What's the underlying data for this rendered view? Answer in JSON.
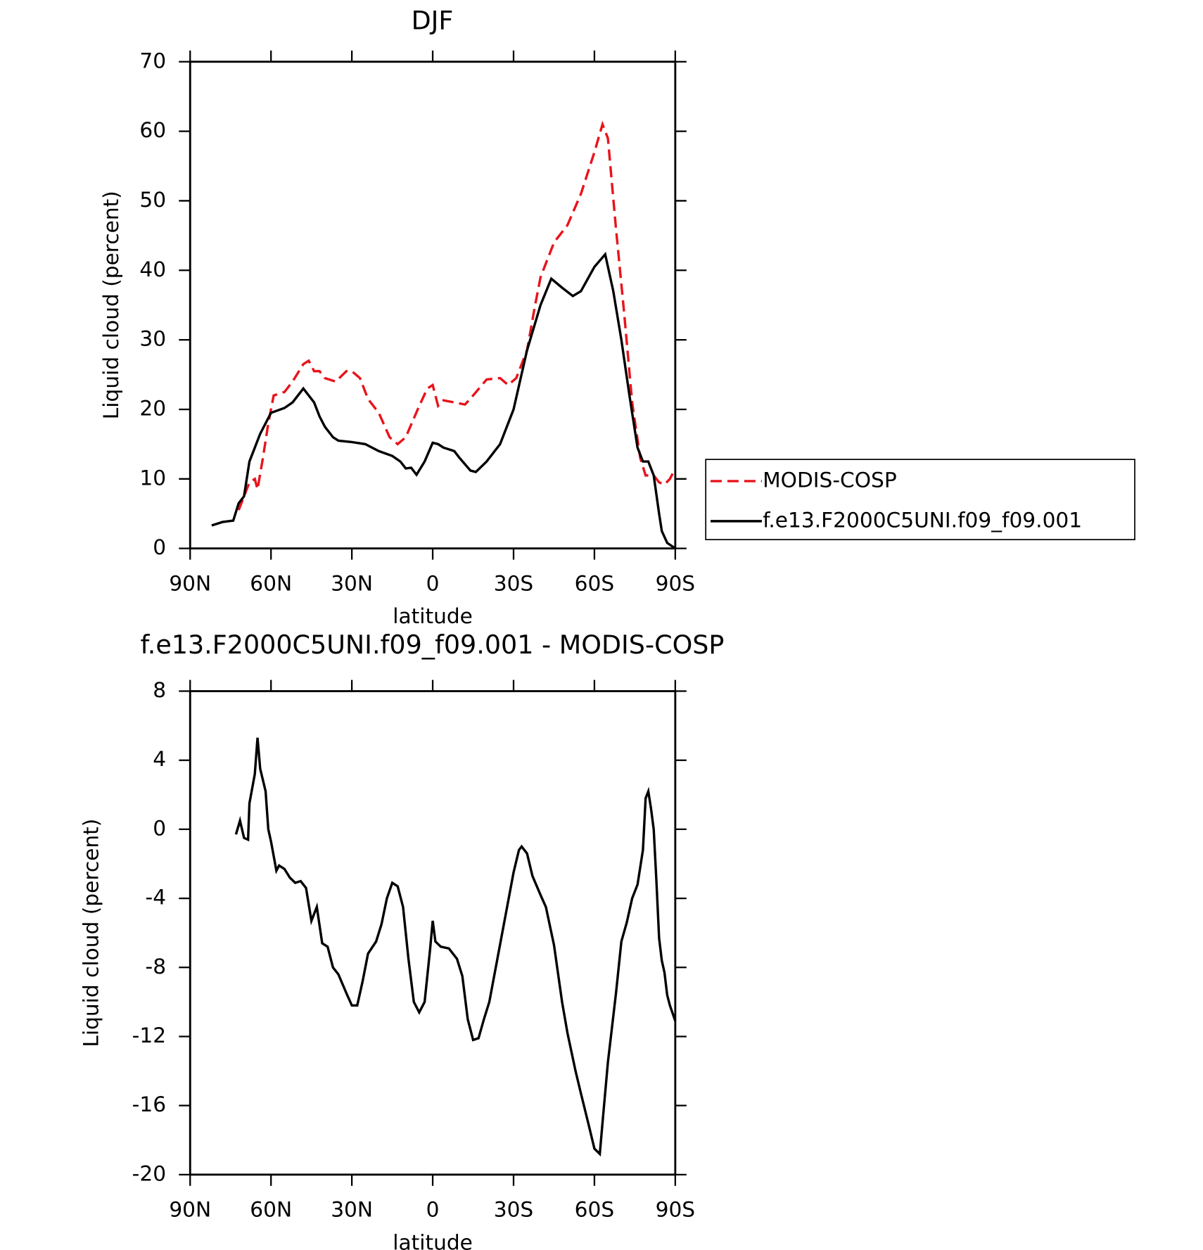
{
  "chart_data": [
    {
      "type": "line",
      "title": "DJF",
      "x_label": "latitude",
      "y_label": "Liquid cloud (percent)",
      "xlim": [
        90,
        -90
      ],
      "xticks": [
        {
          "value": 90,
          "label": "90N"
        },
        {
          "value": 60,
          "label": "60N"
        },
        {
          "value": 30,
          "label": "30N"
        },
        0,
        {
          "value": -30,
          "label": "30S"
        },
        {
          "value": -60,
          "label": "60S"
        },
        {
          "value": -90,
          "label": "90S"
        }
      ],
      "ylim": [
        0,
        70
      ],
      "yticks": [
        0,
        10,
        20,
        30,
        40,
        50,
        60,
        70
      ],
      "legend": "right",
      "series": [
        {
          "name": "MODIS-COSP",
          "color": "#e8141c",
          "line_style": "dashed",
          "x": [
            72,
            70,
            68,
            66,
            65,
            63,
            61,
            59,
            55,
            52,
            48,
            46,
            44,
            42,
            40,
            36,
            32,
            30,
            27,
            24,
            20,
            16,
            13,
            10,
            5,
            2,
            0,
            -2,
            -4,
            -8,
            -12,
            -15,
            -20,
            -25,
            -28,
            -31,
            -35,
            -38,
            -40,
            -45,
            -50,
            -55,
            -60,
            -63,
            -65,
            -68,
            -71,
            -74,
            -77,
            -79,
            -82,
            -84,
            -86,
            -88,
            -90
          ],
          "values": [
            5.5,
            7.5,
            9.5,
            10,
            8.5,
            13,
            18,
            22,
            22.5,
            24,
            26.5,
            27,
            25.5,
            25.5,
            24.5,
            24,
            25.5,
            25.5,
            24.5,
            21.5,
            19.5,
            16,
            15,
            16,
            20.5,
            23,
            23.5,
            20.5,
            21.3,
            21,
            20.7,
            22,
            24.3,
            24.5,
            23.5,
            24.5,
            28.5,
            35,
            39,
            44,
            46.5,
            51,
            57,
            61,
            59,
            46,
            34,
            21,
            13,
            10.5,
            10.5,
            9.5,
            9.2,
            10,
            11.5
          ]
        },
        {
          "name": "f.e13.F2000C5UNI.f09_f09.001",
          "color": "#000000",
          "line_style": "solid",
          "x": [
            82,
            78,
            74,
            72,
            70,
            68,
            66,
            64,
            60,
            55,
            52,
            48,
            46,
            44,
            42,
            40,
            37,
            35,
            30,
            25,
            20,
            15,
            12,
            10,
            8,
            6,
            3,
            0,
            -2,
            -4,
            -8,
            -10,
            -14,
            -16,
            -20,
            -25,
            -30,
            -35,
            -40,
            -44,
            -48,
            -52,
            -55,
            -60,
            -64,
            -67,
            -70,
            -73,
            -76,
            -78,
            -80,
            -82,
            -84,
            -85,
            -87,
            -90
          ],
          "values": [
            3.3,
            3.8,
            4,
            6.5,
            7.5,
            12.5,
            14.5,
            16.5,
            19.5,
            20.2,
            21,
            23,
            22,
            21,
            19,
            17.5,
            16,
            15.5,
            15.3,
            15,
            14,
            13.3,
            12.5,
            11.5,
            11.6,
            10.6,
            12.5,
            15.2,
            15,
            14.5,
            14,
            13,
            11.2,
            11,
            12.5,
            15,
            20,
            28.5,
            35,
            38.8,
            37.5,
            36.3,
            37,
            40.5,
            42.3,
            37,
            30,
            22,
            14.5,
            12.5,
            12.5,
            10.5,
            5,
            2.5,
            0.8,
            0
          ]
        }
      ]
    },
    {
      "type": "line",
      "title": "f.e13.F2000C5UNI.f09_f09.001 - MODIS-COSP",
      "x_label": "latitude",
      "y_label": "Liquid cloud (percent)",
      "xlim": [
        90,
        -90
      ],
      "xticks": [
        {
          "value": 90,
          "label": "90N"
        },
        {
          "value": 60,
          "label": "60N"
        },
        {
          "value": 30,
          "label": "30N"
        },
        0,
        {
          "value": -30,
          "label": "30S"
        },
        {
          "value": -60,
          "label": "60S"
        },
        {
          "value": -90,
          "label": "90S"
        }
      ],
      "ylim": [
        -20,
        8
      ],
      "yticks": [
        -20,
        -16,
        -12,
        -8,
        -4,
        0,
        4,
        8
      ],
      "series": [
        {
          "color": "#000000",
          "line_style": "solid",
          "x": [
            73,
            71.5,
            70,
            68.5,
            68,
            66,
            65,
            64,
            62,
            61,
            60,
            58,
            57,
            55,
            53,
            51,
            49,
            47,
            45,
            43,
            41,
            39,
            37,
            35,
            32,
            30,
            28,
            26,
            24,
            21,
            19,
            17,
            15,
            13,
            11,
            9,
            7,
            5,
            3,
            1,
            0,
            -1,
            -3,
            -6,
            -9,
            -11,
            -13,
            -15,
            -17,
            -19,
            -21,
            -24,
            -27,
            -30,
            -32,
            -33,
            -35,
            -37,
            -40,
            -42,
            -45,
            -48,
            -50,
            -53,
            -55,
            -58,
            -60,
            -62,
            -63,
            -65,
            -68,
            -70,
            -72,
            -74,
            -76,
            -78,
            -79,
            -80,
            -81,
            -82,
            -83,
            -84,
            -85,
            -86,
            -87,
            -88,
            -90
          ],
          "values": [
            -0.3,
            0.5,
            -0.5,
            -0.6,
            1.5,
            3.2,
            5.3,
            3.5,
            2.2,
            0,
            -0.7,
            -2.4,
            -2.1,
            -2.3,
            -2.8,
            -3.1,
            -3,
            -3.4,
            -5.3,
            -4.5,
            -6.6,
            -6.8,
            -8,
            -8.4,
            -9.5,
            -10.2,
            -10.2,
            -8.8,
            -7.2,
            -6.5,
            -5.5,
            -4,
            -3.1,
            -3.3,
            -4.5,
            -7.5,
            -10,
            -10.6,
            -10,
            -7,
            -5.3,
            -6.5,
            -6.8,
            -6.9,
            -7.5,
            -8.5,
            -11,
            -12.2,
            -12.1,
            -11,
            -10,
            -7.5,
            -5,
            -2.5,
            -1.2,
            -1,
            -1.4,
            -2.7,
            -3.8,
            -4.5,
            -6.7,
            -10,
            -11.8,
            -14,
            -15.3,
            -17.2,
            -18.5,
            -18.8,
            -17,
            -13.5,
            -9.5,
            -6.5,
            -5.4,
            -4,
            -3.2,
            -1.2,
            1.8,
            2.2,
            1.2,
            0,
            -3,
            -6.3,
            -7.6,
            -8.3,
            -9.6,
            -10.2,
            -11.1
          ]
        }
      ]
    }
  ]
}
